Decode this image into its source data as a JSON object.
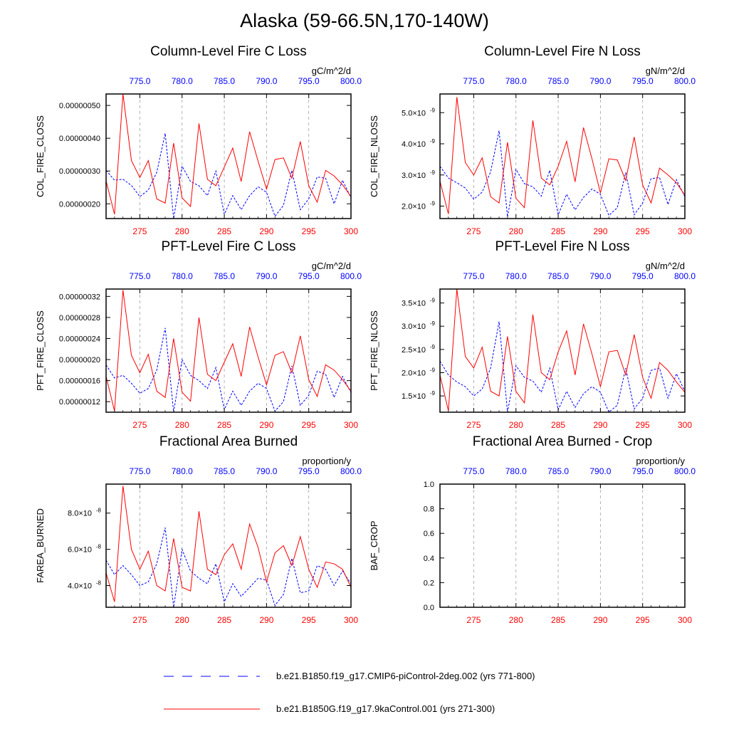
{
  "main_title": "Alaska (59-66.5N,170-140W)",
  "colors": {
    "series_a": "#0000ff",
    "series_b": "#ff0000",
    "grid": "#a0a0a0"
  },
  "legend": [
    {
      "label": "b.e21.B1850.f19_g17.CMIP6-piControl-2deg.002 (yrs 771-800)",
      "color": "#0000ff",
      "style": "dashed"
    },
    {
      "label": "b.e21.B1850G.f19_g17.9kaControl.001 (yrs 271-300)",
      "color": "#ff0000",
      "style": "solid"
    }
  ],
  "chart_data": [
    {
      "type": "line",
      "title": "Column-Level Fire C Loss",
      "units": "gC/m^2/d",
      "ylabel": "COL_FIRE_CLOSS",
      "ylim": [
        1.55e-07,
        5.35e-07
      ],
      "yticks": [
        2e-07,
        3e-07,
        4e-07,
        5e-07
      ],
      "yticklabels": [
        "0.00000020",
        "0.00000030",
        "0.00000040",
        "0.00000050"
      ],
      "x_bottom": {
        "range": [
          271,
          300
        ],
        "ticks": [
          275,
          280,
          285,
          290,
          295,
          300
        ],
        "color": "#ff0000"
      },
      "x_top": {
        "range": [
          771,
          800
        ],
        "ticks": [
          775,
          780,
          785,
          790,
          795,
          800
        ],
        "ticklabels": [
          "775.0",
          "780.0",
          "785.0",
          "790.0",
          "795.0",
          "800.0"
        ],
        "color": "#0000ff"
      },
      "grid": "vertical dashed at ticks",
      "series": [
        {
          "style": "dashed",
          "color": "#0000ff",
          "values": [
            3.02e-07,
            2.72e-07,
            2.75e-07,
            2.56e-07,
            2.22e-07,
            2.42e-07,
            2.96e-07,
            4.15e-07,
            1.55e-07,
            3.15e-07,
            2.68e-07,
            2.55e-07,
            2.25e-07,
            3e-07,
            1.68e-07,
            2.25e-07,
            1.82e-07,
            2.25e-07,
            2.52e-07,
            2.35e-07,
            1.62e-07,
            1.95e-07,
            3.02e-07,
            1.82e-07,
            2.15e-07,
            2.82e-07,
            2.78e-07,
            2e-07,
            2.72e-07,
            2.18e-07
          ]
        },
        {
          "style": "solid",
          "color": "#ff0000",
          "values": [
            2.7e-07,
            1.68e-07,
            5.35e-07,
            3.32e-07,
            2.8e-07,
            3.32e-07,
            2.15e-07,
            2.02e-07,
            3.85e-07,
            2.18e-07,
            1.92e-07,
            4.45e-07,
            2.75e-07,
            2.55e-07,
            3.12e-07,
            3.7e-07,
            2.68e-07,
            4.2e-07,
            3.3e-07,
            2.45e-07,
            3.35e-07,
            3.4e-07,
            2.78e-07,
            3.9e-07,
            2.55e-07,
            2.05e-07,
            3.02e-07,
            2.85e-07,
            2.58e-07,
            2.22e-07
          ]
        }
      ]
    },
    {
      "type": "line",
      "title": "Column-Level Fire N Loss",
      "units": "gN/m^2/d",
      "ylabel": "COL_FIRE_NLOSS",
      "ylim": [
        1.6e-09,
        5.6e-09
      ],
      "yticks": [
        2e-09,
        3e-09,
        4e-09,
        5e-09
      ],
      "yticklabels": [
        "2.0×10",
        "3.0×10",
        "4.0×10",
        "5.0×10"
      ],
      "ytick_exp": "-9",
      "x_bottom": {
        "range": [
          271,
          300
        ],
        "ticks": [
          275,
          280,
          285,
          290,
          295,
          300
        ],
        "color": "#ff0000"
      },
      "x_top": {
        "range": [
          771,
          800
        ],
        "ticks": [
          775,
          780,
          785,
          790,
          795,
          800
        ],
        "ticklabels": [
          "775.0",
          "780.0",
          "785.0",
          "790.0",
          "795.0",
          "800.0"
        ],
        "color": "#0000ff"
      },
      "grid": "vertical dashed at ticks",
      "series": [
        {
          "style": "dashed",
          "color": "#0000ff",
          "values": [
            3.28e-09,
            2.9e-09,
            2.75e-09,
            2.58e-09,
            2.22e-09,
            2.45e-09,
            3.1e-09,
            4.42e-09,
            1.65e-09,
            3.18e-09,
            2.72e-09,
            2.62e-09,
            2.32e-09,
            3.15e-09,
            1.72e-09,
            2.38e-09,
            1.88e-09,
            2.28e-09,
            2.55e-09,
            2.38e-09,
            1.7e-09,
            1.95e-09,
            3.08e-09,
            1.72e-09,
            2.1e-09,
            2.88e-09,
            2.92e-09,
            2.05e-09,
            2.85e-09,
            2.3e-09
          ]
        },
        {
          "style": "solid",
          "color": "#ff0000",
          "values": [
            2.8e-09,
            1.75e-09,
            5.5e-09,
            3.4e-09,
            3e-09,
            3.55e-09,
            2.3e-09,
            2.1e-09,
            4.05e-09,
            2.25e-09,
            1.95e-09,
            4.75e-09,
            2.9e-09,
            2.68e-09,
            3.28e-09,
            4.08e-09,
            2.78e-09,
            4.52e-09,
            3.52e-09,
            2.42e-09,
            3.52e-09,
            3.48e-09,
            2.82e-09,
            4.22e-09,
            2.68e-09,
            2.1e-09,
            3.22e-09,
            3e-09,
            2.75e-09,
            2.35e-09
          ]
        }
      ]
    },
    {
      "type": "line",
      "title": "PFT-Level Fire C Loss",
      "units": "gC/m^2/d",
      "ylabel": "PFT_FIRE_CLOSS",
      "ylim": [
        1e-07,
        3.34e-07
      ],
      "yticks": [
        1.2e-07,
        1.6e-07,
        2e-07,
        2.4e-07,
        2.8e-07,
        3.2e-07
      ],
      "yticklabels": [
        "0.00000012",
        "0.00000016",
        "0.00000020",
        "0.00000024",
        "0.00000028",
        "0.00000032"
      ],
      "x_bottom": {
        "range": [
          271,
          300
        ],
        "ticks": [
          275,
          280,
          285,
          290,
          295,
          300
        ],
        "color": "#ff0000"
      },
      "x_top": {
        "range": [
          771,
          800
        ],
        "ticks": [
          775,
          780,
          785,
          790,
          795,
          800
        ],
        "ticklabels": [
          "775.0",
          "780.0",
          "785.0",
          "790.0",
          "795.0",
          "800.0"
        ],
        "color": "#0000ff"
      },
      "grid": "vertical dashed at ticks",
      "series": [
        {
          "style": "dashed",
          "color": "#0000ff",
          "values": [
            1.9e-07,
            1.65e-07,
            1.7e-07,
            1.55e-07,
            1.36e-07,
            1.45e-07,
            1.8e-07,
            2.6e-07,
            1e-07,
            2e-07,
            1.7e-07,
            1.6e-07,
            1.45e-07,
            1.85e-07,
            1.05e-07,
            1.4e-07,
            1.13e-07,
            1.4e-07,
            1.55e-07,
            1.45e-07,
            1.02e-07,
            1.2e-07,
            1.88e-07,
            1.13e-07,
            1.32e-07,
            1.78e-07,
            1.72e-07,
            1.28e-07,
            1.68e-07,
            1.37e-07
          ]
        },
        {
          "style": "solid",
          "color": "#ff0000",
          "values": [
            1.68e-07,
            1.02e-07,
            3.32e-07,
            2.08e-07,
            1.75e-07,
            2.1e-07,
            1.4e-07,
            1.28e-07,
            2.4e-07,
            1.38e-07,
            1.21e-07,
            2.8e-07,
            1.72e-07,
            1.6e-07,
            1.95e-07,
            2.3e-07,
            1.68e-07,
            2.62e-07,
            2.05e-07,
            1.52e-07,
            2.08e-07,
            2.15e-07,
            1.75e-07,
            2.45e-07,
            1.62e-07,
            1.3e-07,
            1.9e-07,
            1.8e-07,
            1.62e-07,
            1.4e-07
          ]
        }
      ]
    },
    {
      "type": "line",
      "title": "PFT-Level Fire N Loss",
      "units": "gN/m^2/d",
      "ylabel": "PFT_FIRE_NLOSS",
      "ylim": [
        1.15e-09,
        3.8e-09
      ],
      "yticks": [
        1.5e-09,
        2e-09,
        2.5e-09,
        3e-09,
        3.5e-09
      ],
      "yticklabels": [
        "1.5×10",
        "2.0×10",
        "2.5×10",
        "3.0×10",
        "3.5×10"
      ],
      "ytick_exp": "-9",
      "x_bottom": {
        "range": [
          271,
          300
        ],
        "ticks": [
          275,
          280,
          285,
          290,
          295,
          300
        ],
        "color": "#ff0000"
      },
      "x_top": {
        "range": [
          771,
          800
        ],
        "ticks": [
          775,
          780,
          785,
          790,
          795,
          800
        ],
        "ticklabels": [
          "775.0",
          "780.0",
          "785.0",
          "790.0",
          "795.0",
          "800.0"
        ],
        "color": "#0000ff"
      },
      "grid": "vertical dashed at ticks",
      "series": [
        {
          "style": "dashed",
          "color": "#0000ff",
          "values": [
            2.25e-09,
            1.95e-09,
            1.8e-09,
            1.7e-09,
            1.5e-09,
            1.65e-09,
            2.1e-09,
            3.1e-09,
            1.15e-09,
            2.15e-09,
            1.9e-09,
            1.82e-09,
            1.58e-09,
            2.1e-09,
            1.2e-09,
            1.6e-09,
            1.25e-09,
            1.55e-09,
            1.7e-09,
            1.58e-09,
            1.15e-09,
            1.3e-09,
            2.1e-09,
            1.22e-09,
            1.45e-09,
            2.05e-09,
            2.1e-09,
            1.45e-09,
            1.98e-09,
            1.6e-09
          ]
        },
        {
          "style": "solid",
          "color": "#ff0000",
          "values": [
            1.95e-09,
            1.18e-09,
            3.8e-09,
            2.35e-09,
            2.1e-09,
            2.55e-09,
            1.6e-09,
            1.5e-09,
            2.78e-09,
            1.6e-09,
            1.35e-09,
            3.25e-09,
            2e-09,
            1.85e-09,
            2.45e-09,
            2.9e-09,
            1.95e-09,
            3.05e-09,
            2.4e-09,
            1.7e-09,
            2.45e-09,
            2.48e-09,
            1.95e-09,
            2.82e-09,
            1.9e-09,
            1.45e-09,
            2.22e-09,
            2.05e-09,
            1.8e-09,
            1.58e-09
          ]
        }
      ]
    },
    {
      "type": "line",
      "title": "Fractional Area Burned",
      "units": "proportion/y",
      "ylabel": "FAREA_BURNED",
      "ylim": [
        2.8e-08,
        9.6e-08
      ],
      "yticks": [
        4e-08,
        6e-08,
        8e-08
      ],
      "yticklabels": [
        "4.0×10",
        "6.0×10",
        "8.0×10"
      ],
      "ytick_exp": "-8",
      "x_bottom": {
        "range": [
          271,
          300
        ],
        "ticks": [
          275,
          280,
          285,
          290,
          295,
          300
        ],
        "color": "#ff0000"
      },
      "x_top": {
        "range": [
          771,
          800
        ],
        "ticks": [
          775,
          780,
          785,
          790,
          795,
          800
        ],
        "ticklabels": [
          "775.0",
          "780.0",
          "785.0",
          "790.0",
          "795.0",
          "800.0"
        ],
        "color": "#0000ff"
      },
      "grid": "vertical dashed at ticks",
      "series": [
        {
          "style": "dashed",
          "color": "#0000ff",
          "values": [
            5.4e-08,
            4.6e-08,
            5.1e-08,
            4.6e-08,
            4e-08,
            4.2e-08,
            5.2e-08,
            7.2e-08,
            2.8e-08,
            6e-08,
            4.8e-08,
            4.4e-08,
            4.1e-08,
            5.2e-08,
            3.1e-08,
            4.1e-08,
            3.4e-08,
            3.9e-08,
            4.4e-08,
            4.3e-08,
            2.9e-08,
            3.5e-08,
            5.5e-08,
            3.6e-08,
            3.7e-08,
            5.1e-08,
            4.9e-08,
            4e-08,
            4.8e-08,
            4.1e-08
          ]
        },
        {
          "style": "solid",
          "color": "#ff0000",
          "values": [
            4.7e-08,
            3.1e-08,
            9.5e-08,
            6e-08,
            4.9e-08,
            5.9e-08,
            4e-08,
            3.7e-08,
            6.6e-08,
            3.9e-08,
            3.7e-08,
            8.1e-08,
            4.9e-08,
            4.6e-08,
            5.7e-08,
            6.3e-08,
            4.9e-08,
            7.4e-08,
            6.1e-08,
            4.2e-08,
            5.8e-08,
            6.2e-08,
            5.1e-08,
            6.7e-08,
            4.9e-08,
            3.9e-08,
            5.3e-08,
            5.2e-08,
            4.9e-08,
            3.9e-08
          ]
        }
      ]
    },
    {
      "type": "line",
      "title": "Fractional Area Burned - Crop",
      "units": "proportion/y",
      "ylabel": "BAF_CROP",
      "ylim": [
        0,
        1
      ],
      "yticks": [
        0,
        0.2,
        0.4,
        0.6,
        0.8,
        1.0
      ],
      "yticklabels": [
        "0.0",
        "0.2",
        "0.4",
        "0.6",
        "0.8",
        "1.0"
      ],
      "x_bottom": {
        "range": [
          271,
          300
        ],
        "ticks": [
          275,
          280,
          285,
          290,
          295,
          300
        ],
        "color": "#ff0000"
      },
      "x_top": {
        "range": [
          771,
          800
        ],
        "ticks": [
          775,
          780,
          785,
          790,
          795,
          800
        ],
        "ticklabels": [
          "775.0",
          "780.0",
          "785.0",
          "790.0",
          "795.0",
          "800.0"
        ],
        "color": "#0000ff"
      },
      "grid": "vertical dashed at ticks",
      "series": [
        {
          "style": "dashed",
          "color": "#0000ff",
          "values": [
            0,
            0,
            0,
            0,
            0,
            0,
            0,
            0,
            0,
            0,
            0,
            0,
            0,
            0,
            0,
            0,
            0,
            0,
            0,
            0,
            0,
            0,
            0,
            0,
            0,
            0,
            0,
            0,
            0,
            0
          ]
        },
        {
          "style": "solid",
          "color": "#ff0000",
          "values": [
            0,
            0,
            0,
            0,
            0,
            0,
            0,
            0,
            0,
            0,
            0,
            0,
            0,
            0,
            0,
            0,
            0,
            0,
            0,
            0,
            0,
            0,
            0,
            0,
            0,
            0,
            0,
            0,
            0,
            0
          ]
        }
      ]
    }
  ]
}
